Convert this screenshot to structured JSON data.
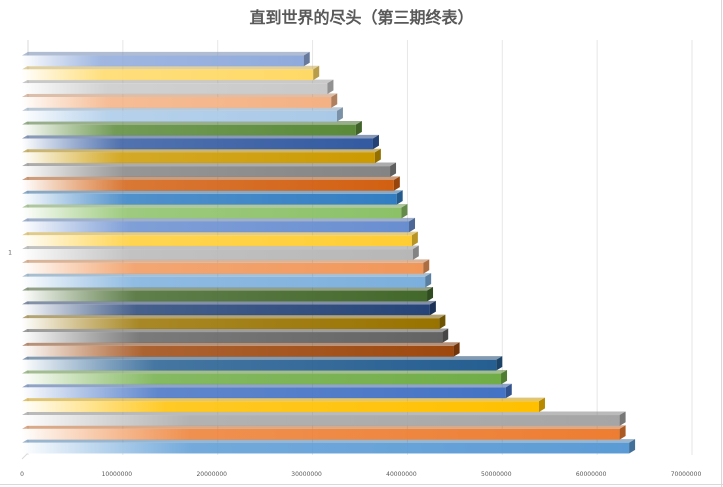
{
  "chart_data": {
    "type": "bar",
    "orientation": "horizontal",
    "title": "直到世界的尽头（第三期终表）",
    "categories": [
      "1"
    ],
    "xlim": [
      0,
      70000000
    ],
    "xticks": [
      0,
      10000000,
      20000000,
      30000000,
      40000000,
      50000000,
      60000000,
      70000000
    ],
    "xtick_labels": [
      "0",
      "10000000",
      "20000000",
      "30000000",
      "40000000",
      "50000000",
      "60000000",
      "70000000"
    ],
    "grid": "vertical",
    "legend": "none",
    "style": "3d-gradient",
    "series": [
      {
        "value": 64000000,
        "color": "#5b9bd5"
      },
      {
        "value": 63000000,
        "color": "#ed7d31"
      },
      {
        "value": 63000000,
        "color": "#a5a5a5"
      },
      {
        "value": 54500000,
        "color": "#ffc000"
      },
      {
        "value": 51000000,
        "color": "#4472c4"
      },
      {
        "value": 50500000,
        "color": "#70ad47"
      },
      {
        "value": 50000000,
        "color": "#255e91"
      },
      {
        "value": 45500000,
        "color": "#9e480e"
      },
      {
        "value": 44300000,
        "color": "#636363"
      },
      {
        "value": 44000000,
        "color": "#997300"
      },
      {
        "value": 43000000,
        "color": "#264478"
      },
      {
        "value": 42700000,
        "color": "#43682b"
      },
      {
        "value": 42500000,
        "color": "#7cafdd"
      },
      {
        "value": 42300000,
        "color": "#f1975a"
      },
      {
        "value": 41200000,
        "color": "#b7b7b7"
      },
      {
        "value": 41100000,
        "color": "#ffcd33"
      },
      {
        "value": 40800000,
        "color": "#698ed0"
      },
      {
        "value": 40000000,
        "color": "#8cc168"
      },
      {
        "value": 39500000,
        "color": "#327dc2"
      },
      {
        "value": 39200000,
        "color": "#d26012"
      },
      {
        "value": 38800000,
        "color": "#848484"
      },
      {
        "value": 37200000,
        "color": "#cc9a00"
      },
      {
        "value": 37000000,
        "color": "#335aa1"
      },
      {
        "value": 35200000,
        "color": "#5a8a39"
      },
      {
        "value": 33200000,
        "color": "#a9c9e8"
      },
      {
        "value": 32600000,
        "color": "#f4b183"
      },
      {
        "value": 32200000,
        "color": "#c9c9c9"
      },
      {
        "value": 30700000,
        "color": "#ffd966"
      },
      {
        "value": 29700000,
        "color": "#8faadc"
      }
    ]
  }
}
